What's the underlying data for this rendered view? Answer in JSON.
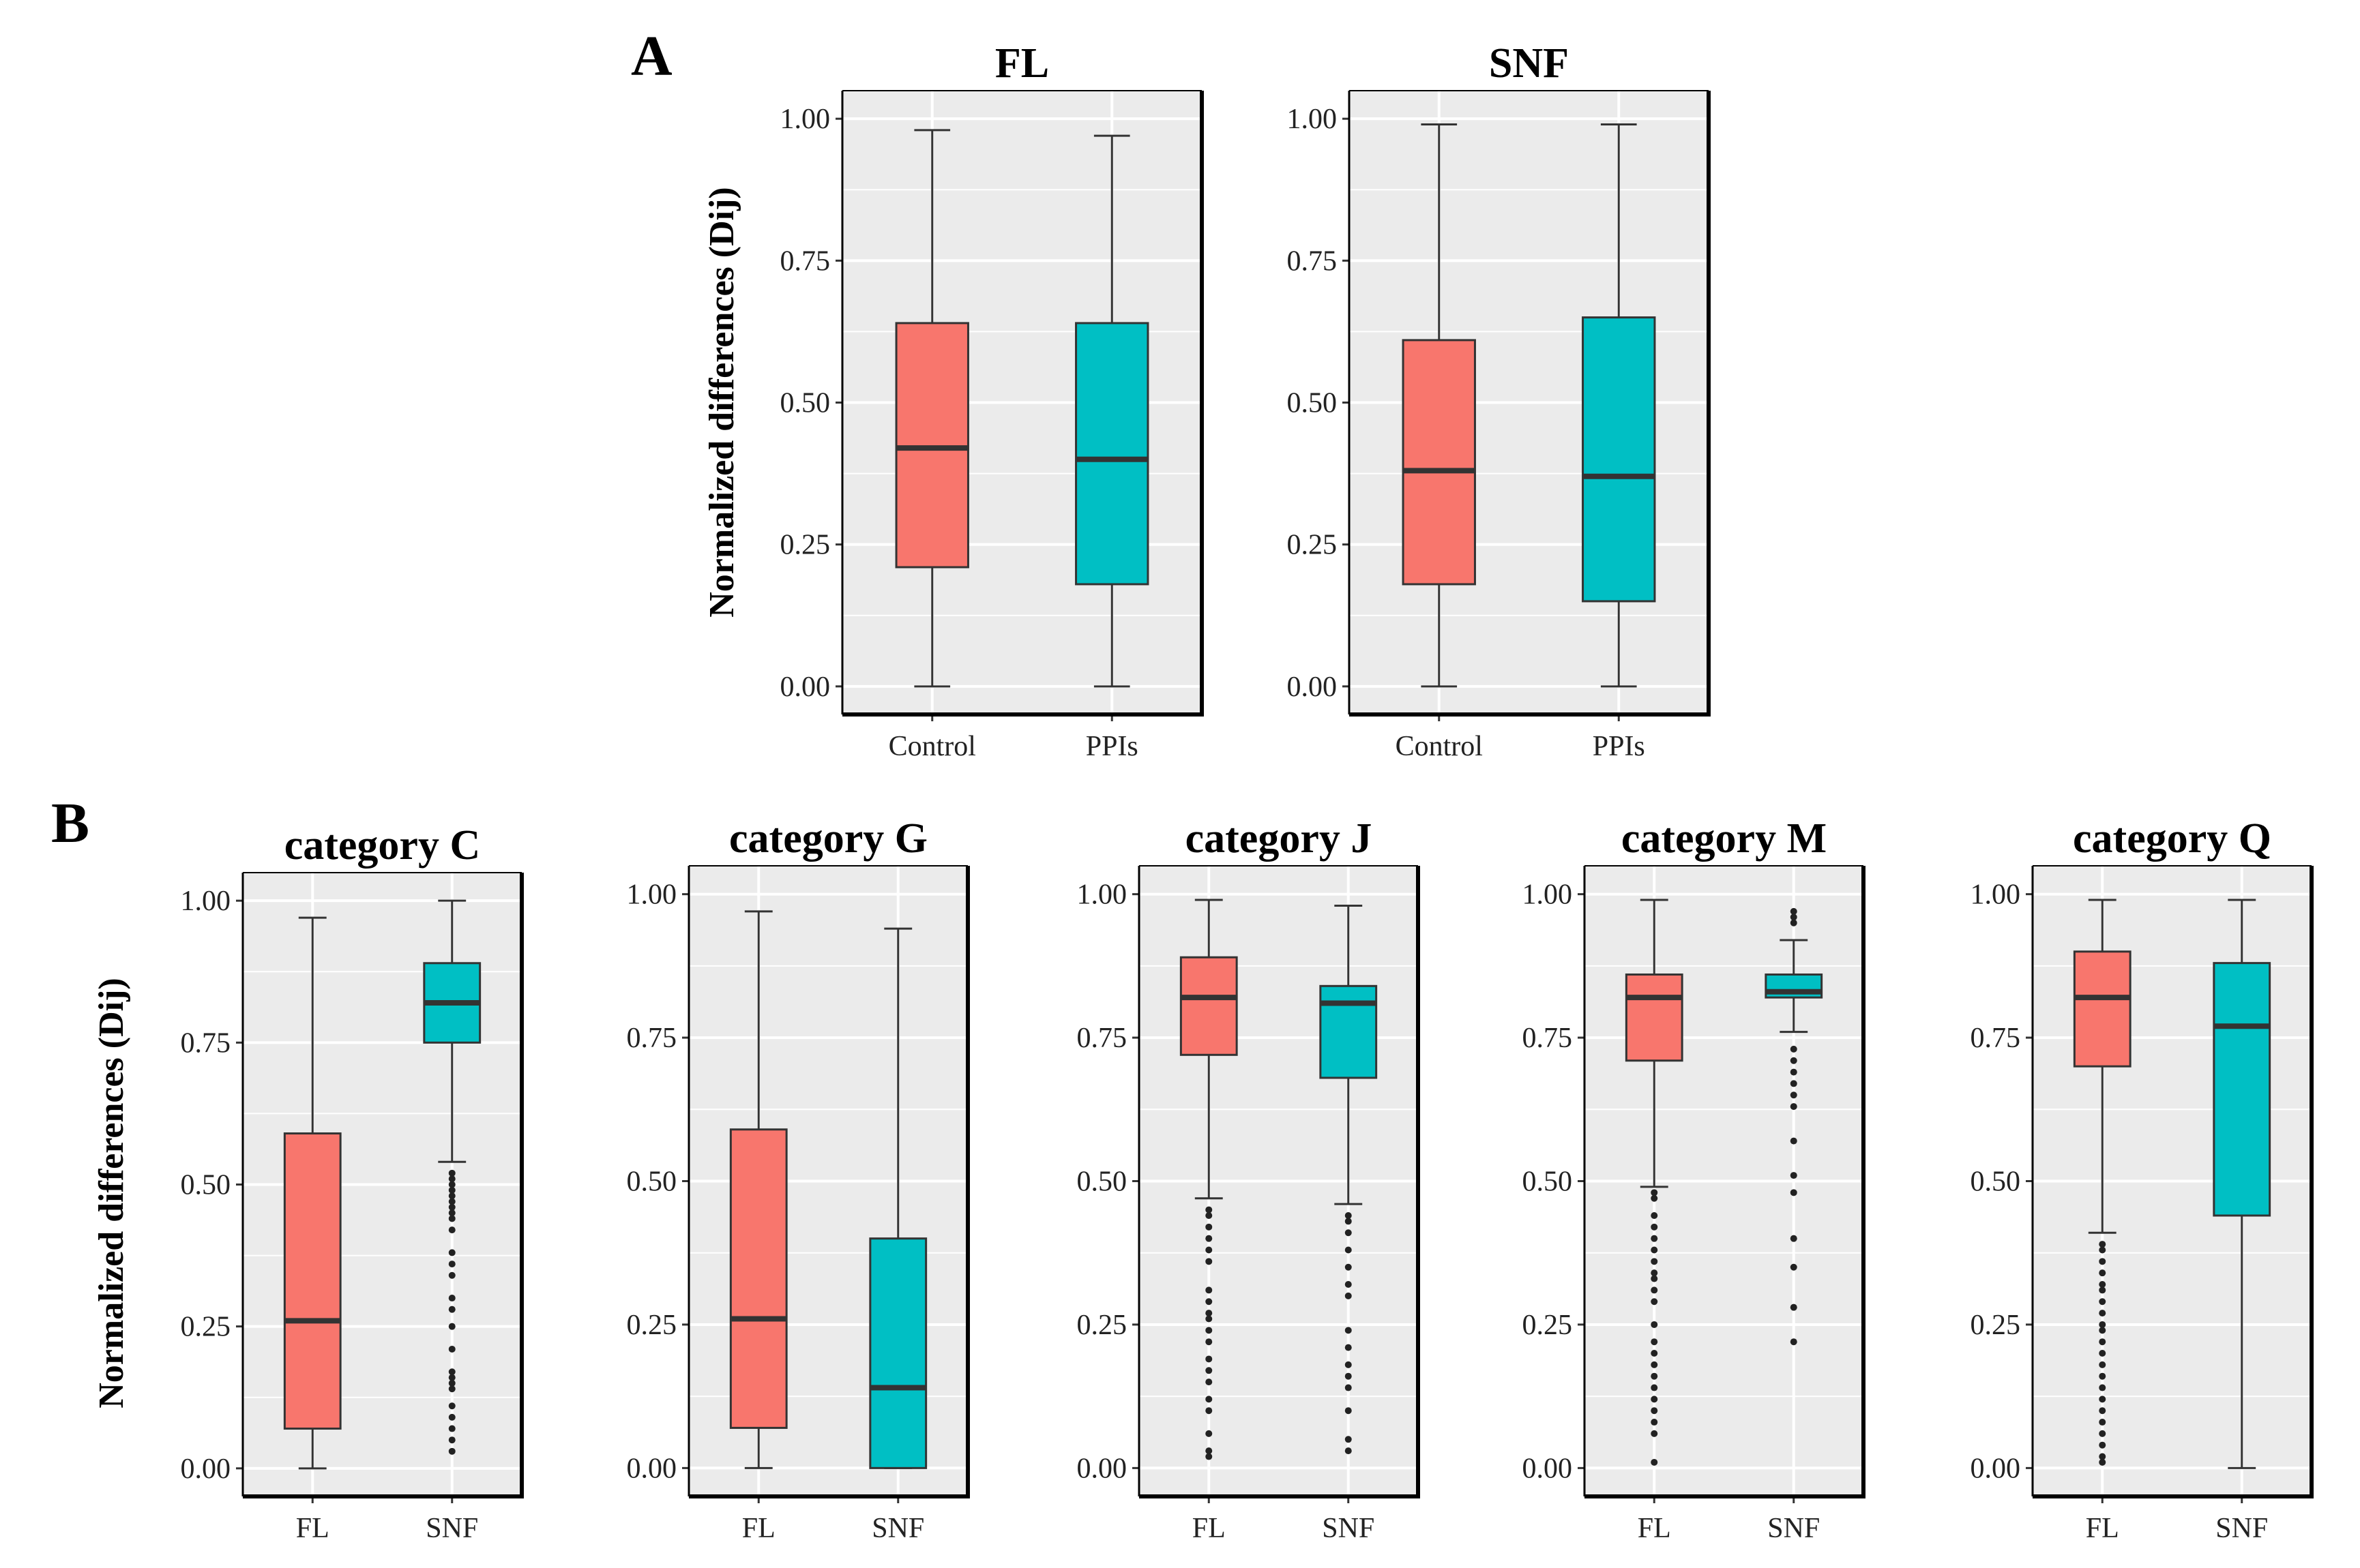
{
  "panel_letters": {
    "a": "A",
    "b": "B"
  },
  "y_axis_label": "Normalized differences (Dij)",
  "colors": {
    "fl": "#F8766D",
    "snf": "#00BFC4",
    "panel_bg": "#EBEBEB",
    "grid": "#FFFFFF",
    "line": "#333333"
  },
  "chart_data": [
    {
      "type": "boxplot",
      "panel": "A",
      "title": "FL",
      "categories": [
        "Control",
        "PPIs"
      ],
      "ylim": [
        0,
        1
      ],
      "ticks": [
        "0.00",
        "0.25",
        "0.50",
        "0.75",
        "1.00"
      ],
      "boxes": [
        {
          "label": "Control",
          "color": "fl",
          "whisker_low": 0.0,
          "q1": 0.21,
          "median": 0.42,
          "q3": 0.64,
          "whisker_high": 0.98,
          "outliers": []
        },
        {
          "label": "PPIs",
          "color": "snf",
          "whisker_low": 0.0,
          "q1": 0.18,
          "median": 0.4,
          "q3": 0.64,
          "whisker_high": 0.97,
          "outliers": []
        }
      ]
    },
    {
      "type": "boxplot",
      "panel": "A",
      "title": "SNF",
      "categories": [
        "Control",
        "PPIs"
      ],
      "ylim": [
        0,
        1
      ],
      "ticks": [
        "0.00",
        "0.25",
        "0.50",
        "0.75",
        "1.00"
      ],
      "boxes": [
        {
          "label": "Control",
          "color": "fl",
          "whisker_low": 0.0,
          "q1": 0.18,
          "median": 0.38,
          "q3": 0.61,
          "whisker_high": 0.99,
          "outliers": []
        },
        {
          "label": "PPIs",
          "color": "snf",
          "whisker_low": 0.0,
          "q1": 0.15,
          "median": 0.37,
          "q3": 0.65,
          "whisker_high": 0.99,
          "outliers": []
        }
      ]
    },
    {
      "type": "boxplot",
      "panel": "B",
      "title": "category C",
      "categories": [
        "FL",
        "SNF"
      ],
      "ylim": [
        0,
        1
      ],
      "ticks": [
        "0.00",
        "0.25",
        "0.50",
        "0.75",
        "1.00"
      ],
      "boxes": [
        {
          "label": "FL",
          "color": "fl",
          "whisker_low": 0.0,
          "q1": 0.07,
          "median": 0.26,
          "q3": 0.59,
          "whisker_high": 0.97,
          "outliers": []
        },
        {
          "label": "SNF",
          "color": "snf",
          "whisker_low": 0.54,
          "q1": 0.75,
          "median": 0.82,
          "q3": 0.89,
          "whisker_high": 1.0,
          "outliers": [
            0.52,
            0.51,
            0.5,
            0.49,
            0.48,
            0.47,
            0.46,
            0.45,
            0.44,
            0.42,
            0.38,
            0.36,
            0.34,
            0.3,
            0.28,
            0.25,
            0.21,
            0.17,
            0.16,
            0.15,
            0.14,
            0.11,
            0.09,
            0.07,
            0.05,
            0.03
          ]
        }
      ]
    },
    {
      "type": "boxplot",
      "panel": "B",
      "title": "category G",
      "categories": [
        "FL",
        "SNF"
      ],
      "ylim": [
        0,
        1
      ],
      "ticks": [
        "0.00",
        "0.25",
        "0.50",
        "0.75",
        "1.00"
      ],
      "boxes": [
        {
          "label": "FL",
          "color": "fl",
          "whisker_low": 0.0,
          "q1": 0.07,
          "median": 0.26,
          "q3": 0.59,
          "whisker_high": 0.97,
          "outliers": []
        },
        {
          "label": "SNF",
          "color": "snf",
          "whisker_low": 0.0,
          "q1": 0.0,
          "median": 0.14,
          "q3": 0.4,
          "whisker_high": 0.94,
          "outliers": []
        }
      ]
    },
    {
      "type": "boxplot",
      "panel": "B",
      "title": "category J",
      "categories": [
        "FL",
        "SNF"
      ],
      "ylim": [
        0,
        1
      ],
      "ticks": [
        "0.00",
        "0.25",
        "0.50",
        "0.75",
        "1.00"
      ],
      "boxes": [
        {
          "label": "FL",
          "color": "fl",
          "whisker_low": 0.47,
          "q1": 0.72,
          "median": 0.82,
          "q3": 0.89,
          "whisker_high": 0.99,
          "outliers": [
            0.45,
            0.44,
            0.42,
            0.4,
            0.38,
            0.36,
            0.31,
            0.29,
            0.27,
            0.26,
            0.24,
            0.22,
            0.19,
            0.17,
            0.15,
            0.12,
            0.1,
            0.06,
            0.03,
            0.02
          ]
        },
        {
          "label": "SNF",
          "color": "snf",
          "whisker_low": 0.46,
          "q1": 0.68,
          "median": 0.81,
          "q3": 0.84,
          "whisker_high": 0.98,
          "outliers": [
            0.44,
            0.43,
            0.41,
            0.38,
            0.35,
            0.32,
            0.3,
            0.24,
            0.21,
            0.18,
            0.16,
            0.14,
            0.1,
            0.05,
            0.03
          ]
        }
      ]
    },
    {
      "type": "boxplot",
      "panel": "B",
      "title": "category M",
      "categories": [
        "FL",
        "SNF"
      ],
      "ylim": [
        0,
        1
      ],
      "ticks": [
        "0.00",
        "0.25",
        "0.50",
        "0.75",
        "1.00"
      ],
      "boxes": [
        {
          "label": "FL",
          "color": "fl",
          "whisker_low": 0.49,
          "q1": 0.71,
          "median": 0.82,
          "q3": 0.86,
          "whisker_high": 0.99,
          "outliers": [
            0.48,
            0.47,
            0.44,
            0.42,
            0.4,
            0.38,
            0.36,
            0.34,
            0.33,
            0.31,
            0.29,
            0.25,
            0.22,
            0.2,
            0.18,
            0.16,
            0.14,
            0.12,
            0.1,
            0.08,
            0.06,
            0.01
          ]
        },
        {
          "label": "SNF",
          "color": "snf",
          "whisker_low": 0.76,
          "q1": 0.82,
          "median": 0.83,
          "q3": 0.86,
          "whisker_high": 0.92,
          "outliers": [
            0.97,
            0.96,
            0.95,
            0.73,
            0.71,
            0.69,
            0.67,
            0.65,
            0.63,
            0.57,
            0.51,
            0.48,
            0.4,
            0.35,
            0.28,
            0.22
          ]
        }
      ]
    },
    {
      "type": "boxplot",
      "panel": "B",
      "title": "category Q",
      "categories": [
        "FL",
        "SNF"
      ],
      "ylim": [
        0,
        1
      ],
      "ticks": [
        "0.00",
        "0.25",
        "0.50",
        "0.75",
        "1.00"
      ],
      "boxes": [
        {
          "label": "FL",
          "color": "fl",
          "whisker_low": 0.41,
          "q1": 0.7,
          "median": 0.82,
          "q3": 0.9,
          "whisker_high": 0.99,
          "outliers": [
            0.39,
            0.38,
            0.36,
            0.34,
            0.32,
            0.31,
            0.29,
            0.27,
            0.25,
            0.24,
            0.22,
            0.2,
            0.18,
            0.16,
            0.14,
            0.12,
            0.1,
            0.08,
            0.06,
            0.04,
            0.02,
            0.01
          ]
        },
        {
          "label": "SNF",
          "color": "snf",
          "whisker_low": 0.0,
          "q1": 0.44,
          "median": 0.77,
          "q3": 0.88,
          "whisker_high": 0.99,
          "outliers": []
        }
      ]
    }
  ]
}
